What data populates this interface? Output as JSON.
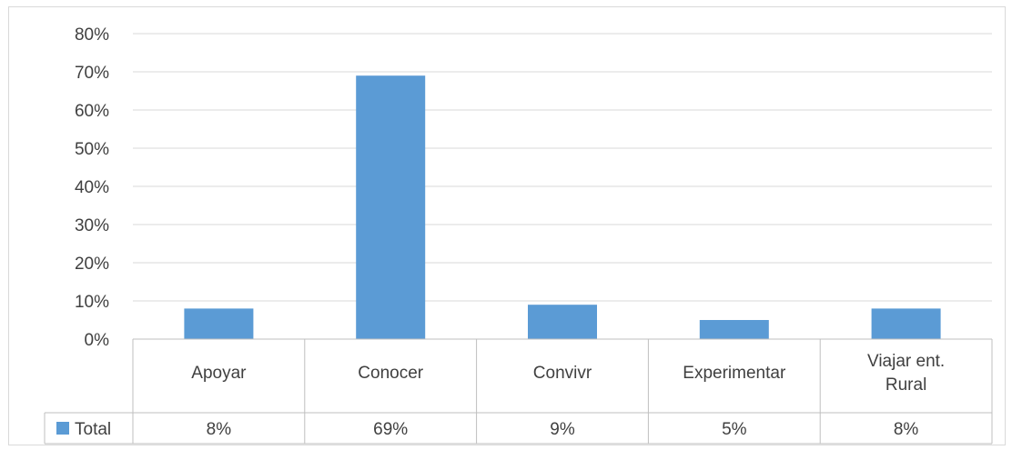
{
  "colors": {
    "bar": "#5b9bd5",
    "grid": "#d9d9d9",
    "text": "#404040",
    "table_line": "#bfbfbf"
  },
  "chart_data": {
    "type": "bar",
    "categories": [
      "Apoyar",
      "Conocer",
      "Convivr",
      "Experimentar",
      "Viajar ent. Rural"
    ],
    "category_lines": [
      [
        "Apoyar"
      ],
      [
        "Conocer"
      ],
      [
        "Convivr"
      ],
      [
        "Experimentar"
      ],
      [
        "Viajar ent.",
        "Rural"
      ]
    ],
    "series": [
      {
        "name": "Total",
        "values": [
          8,
          69,
          9,
          5,
          8
        ],
        "labels": [
          "8%",
          "69%",
          "9%",
          "5%",
          "8%"
        ]
      }
    ],
    "y_ticks": [
      "0%",
      "10%",
      "20%",
      "30%",
      "40%",
      "50%",
      "60%",
      "70%",
      "80%"
    ],
    "ylim": [
      0,
      80
    ],
    "y_unit": "%",
    "grid": true,
    "legend": "data-table",
    "data_table": true
  }
}
